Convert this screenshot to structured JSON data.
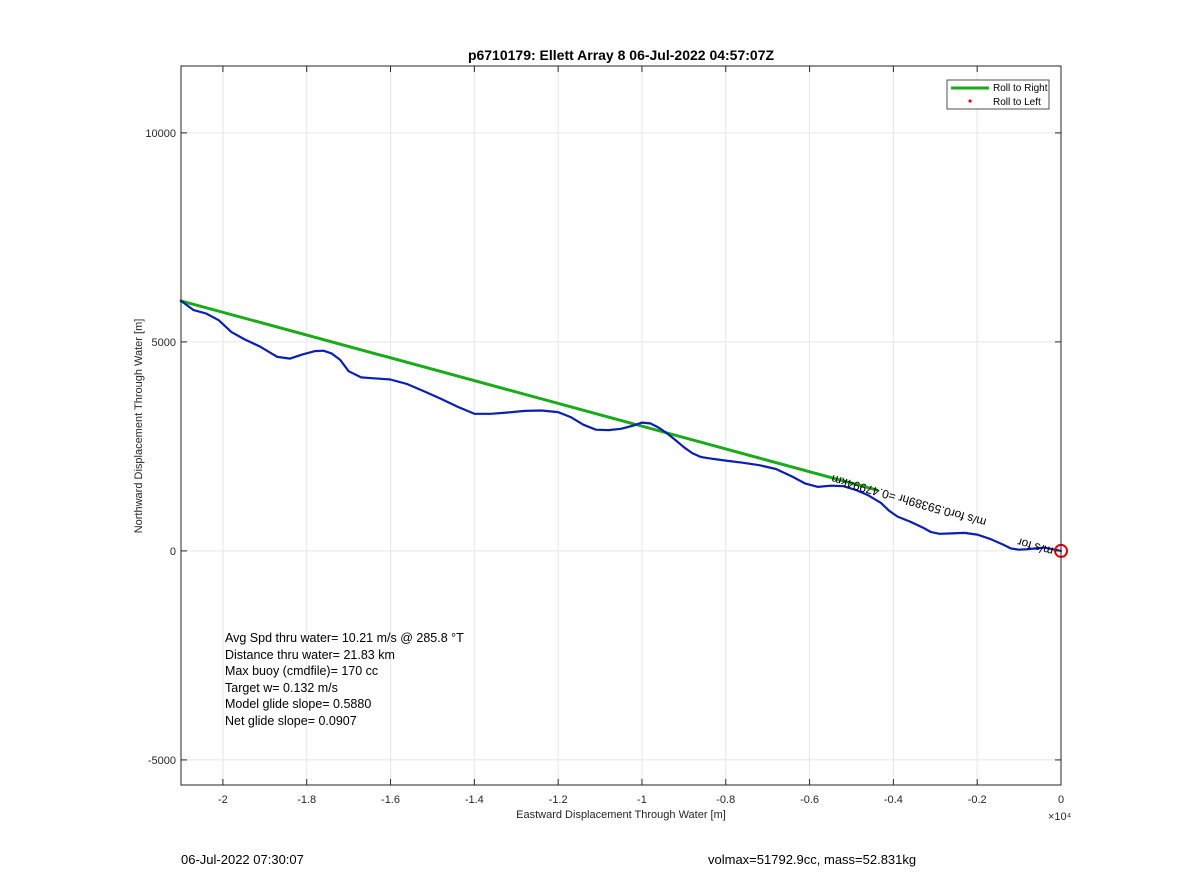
{
  "chart_data": {
    "type": "line",
    "title": "p6710179: Ellett Array 8 06-Jul-2022 04:57:07Z",
    "xlabel": "Eastward Displacement Through Water [m]",
    "ylabel": "Northward Displacement Through Water [m]",
    "x_exponent_label": "×10⁴",
    "xlim": [
      -21000,
      0
    ],
    "ylim": [
      -5600,
      11600
    ],
    "x_ticks": [
      -20000,
      -18000,
      -16000,
      -14000,
      -12000,
      -10000,
      -8000,
      -6000,
      -4000,
      -2000,
      0
    ],
    "x_tick_labels": [
      "-2",
      "-1.8",
      "-1.6",
      "-1.4",
      "-1.2",
      "-1",
      "-0.8",
      "-0.6",
      "-0.4",
      "-0.2",
      "0"
    ],
    "y_ticks": [
      -5000,
      0,
      5000,
      10000
    ],
    "y_tick_labels": [
      "-5000",
      "0",
      "5000",
      "10000"
    ],
    "grid": true,
    "legend_position": "top-right",
    "legend": [
      {
        "label": "Roll to Right",
        "color": "#1aaa1a",
        "style": "line"
      },
      {
        "label": "Roll to Left",
        "color": "#ff0000",
        "style": "dot"
      }
    ],
    "series": [
      {
        "name": "Roll to Right",
        "color": "#1aaa1a",
        "x": [
          -21000,
          -4400
        ],
        "y": [
          5980,
          1460
        ]
      },
      {
        "color": "#0b1fb0",
        "x": [
          -21000,
          -20700,
          -20400,
          -20100,
          -19800,
          -19500,
          -19100,
          -18700,
          -18400,
          -18100,
          -17800,
          -17600,
          -17400,
          -17200,
          -17000,
          -16700,
          -16400,
          -16000,
          -15600,
          -15200,
          -14800,
          -14400,
          -14000,
          -13600,
          -13200,
          -12800,
          -12400,
          -12000,
          -11700,
          -11400,
          -11100,
          -10800,
          -10500,
          -10200,
          -10000,
          -9800,
          -9600,
          -9400,
          -9200,
          -9000,
          -8800,
          -8600,
          -8300,
          -8000,
          -7600,
          -7200,
          -6800,
          -6400,
          -6100,
          -5800,
          -5500,
          -5200,
          -4900,
          -4600,
          -4300,
          -4100,
          -3900,
          -3600,
          -3300,
          -3100,
          -2900,
          -2600,
          -2300,
          -2000,
          -1700,
          -1400,
          -1200,
          -1000,
          -800,
          -600,
          -400,
          -200,
          0
        ],
        "y": [
          5980,
          5760,
          5680,
          5520,
          5240,
          5070,
          4880,
          4640,
          4600,
          4700,
          4780,
          4790,
          4720,
          4570,
          4300,
          4150,
          4130,
          4100,
          3990,
          3820,
          3640,
          3450,
          3280,
          3280,
          3310,
          3350,
          3360,
          3320,
          3200,
          3020,
          2900,
          2890,
          2920,
          3000,
          3070,
          3050,
          2950,
          2810,
          2650,
          2480,
          2340,
          2250,
          2200,
          2160,
          2110,
          2050,
          1960,
          1770,
          1610,
          1530,
          1560,
          1550,
          1460,
          1330,
          1150,
          960,
          820,
          700,
          560,
          450,
          410,
          420,
          430,
          390,
          290,
          160,
          60,
          30,
          40,
          60,
          80,
          40,
          0
        ]
      }
    ],
    "end_marker": {
      "x": 0,
      "y": 0,
      "color": "#e00000"
    },
    "drift_annotation": "m/s for0.59389hr =0.47994km",
    "drift_annotation_near_end": "m/s for"
  },
  "stats": [
    "Avg Spd thru water= 10.21 m/s @ 285.8 °T",
    "Distance thru water= 21.83 km",
    "Max buoy (cmdfile)= 170 cc",
    "Target w= 0.132 m/s",
    "Model glide slope= 0.5880",
    "Net glide slope= 0.0907"
  ],
  "footer": {
    "left": "06-Jul-2022 07:30:07",
    "right": "volmax=51792.9cc, mass=52.831kg"
  }
}
